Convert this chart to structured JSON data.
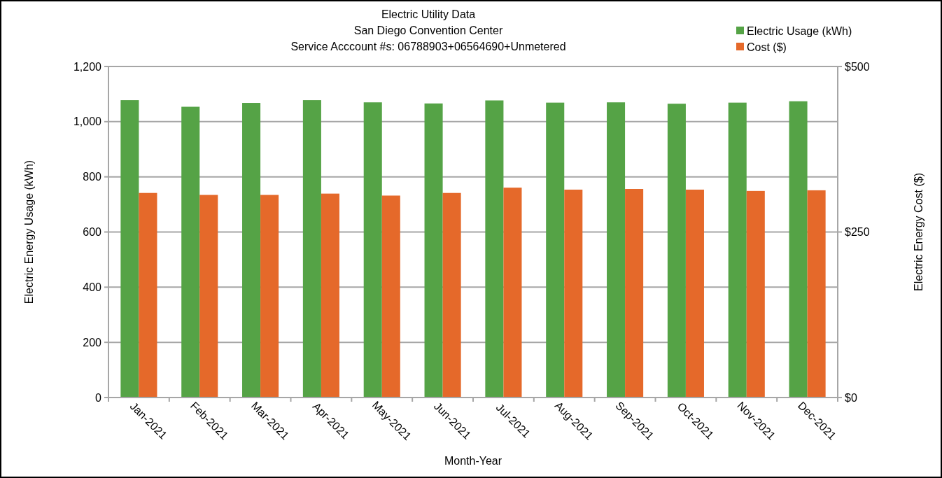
{
  "chart_data": {
    "type": "bar",
    "title": "Electric Utility Data",
    "subtitle": "San Diego Convention Center\nService Acccount #s: 06788903+06564690+Unmetered",
    "xlabel": "Month-Year",
    "ylabel": "Electric Energy Usage (kWh)",
    "y2label": "Electric Energy Cost ($)",
    "categories": [
      "Jan-2021",
      "Feb-2021",
      "Mar-2021",
      "Apr-2021",
      "May-2021",
      "Jun-2021",
      "Jul-2021",
      "Aug-2021",
      "Sep-2021",
      "Oct-2021",
      "Nov-2021",
      "Dec-2021"
    ],
    "series": [
      {
        "name": "Electric Usage (kWh)",
        "color": "#55a346",
        "values": [
          1078,
          1054,
          1068,
          1078,
          1070,
          1066,
          1077,
          1069,
          1070,
          1065,
          1069,
          1074
        ]
      },
      {
        "name": "Cost ($)",
        "color": "#e5692a",
        "axis": "y2",
        "values": [
          309,
          306,
          306,
          308,
          305,
          309,
          317,
          314,
          315,
          314,
          312,
          313
        ]
      }
    ],
    "ylim": [
      0,
      1200
    ],
    "yticks": [
      {
        "value": 0,
        "label": "0"
      },
      {
        "value": 200,
        "label": "200"
      },
      {
        "value": 400,
        "label": "400"
      },
      {
        "value": 600,
        "label": "600"
      },
      {
        "value": 800,
        "label": "800"
      },
      {
        "value": 1000,
        "label": "1,000"
      },
      {
        "value": 1200,
        "label": "1,200"
      }
    ],
    "y2lim": [
      0,
      500
    ],
    "y2ticks": [
      {
        "value": 0,
        "label": "$0"
      },
      {
        "value": 250,
        "label": "$250"
      },
      {
        "value": 500,
        "label": "$500"
      }
    ],
    "grid": "y",
    "legend": "top right"
  }
}
